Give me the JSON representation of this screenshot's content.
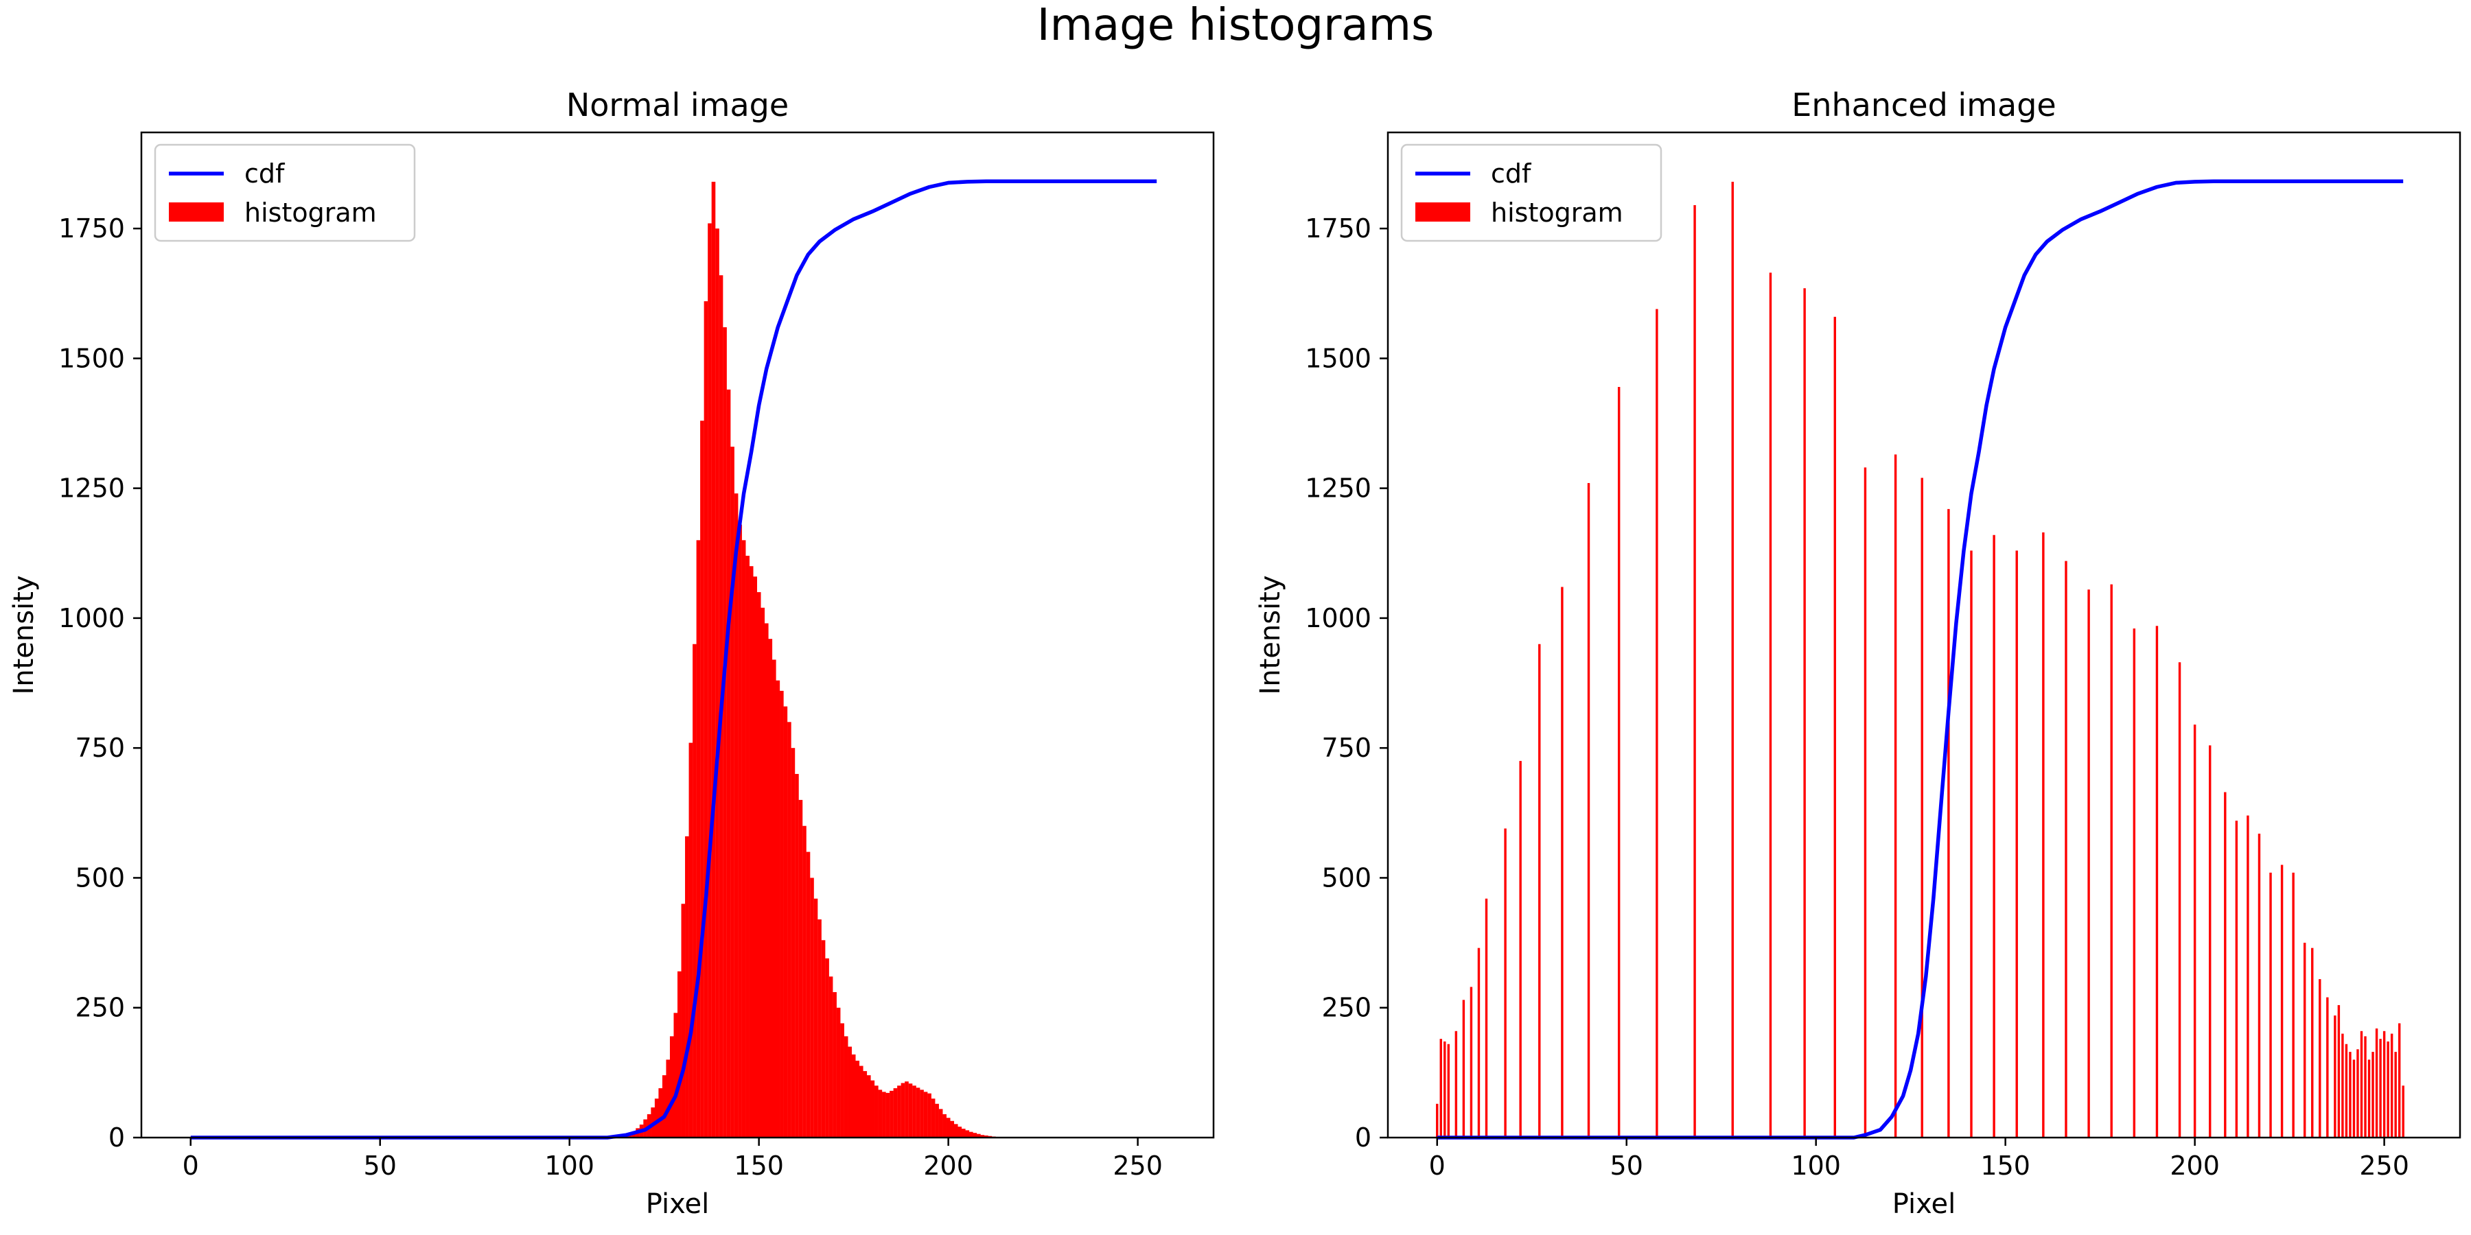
{
  "figure": {
    "title": "Image histograms"
  },
  "colors": {
    "cdf": "#0000ff",
    "histogram": "#ff0000",
    "axis": "#000000"
  },
  "chart_data": [
    {
      "type": "bar",
      "title": "Normal image",
      "xlabel": "Pixel",
      "ylabel": "Intensity",
      "xlim": [
        -13,
        270
      ],
      "ylim": [
        0,
        1935
      ],
      "xticks": [
        0,
        50,
        100,
        150,
        200,
        250
      ],
      "yticks": [
        0,
        250,
        500,
        750,
        1000,
        1250,
        1500,
        1750
      ],
      "legend": {
        "location": "upper-left",
        "entries": [
          "cdf",
          "histogram"
        ]
      },
      "series": [
        {
          "name": "histogram",
          "kind": "bar",
          "histogram_bins": [
            [
              113,
              2
            ],
            [
              114,
              3
            ],
            [
              115,
              5
            ],
            [
              116,
              8
            ],
            [
              117,
              12
            ],
            [
              118,
              18
            ],
            [
              119,
              25
            ],
            [
              120,
              35
            ],
            [
              121,
              45
            ],
            [
              122,
              58
            ],
            [
              123,
              75
            ],
            [
              124,
              95
            ],
            [
              125,
              120
            ],
            [
              126,
              150
            ],
            [
              127,
              195
            ],
            [
              128,
              240
            ],
            [
              129,
              320
            ],
            [
              130,
              450
            ],
            [
              131,
              580
            ],
            [
              132,
              760
            ],
            [
              133,
              950
            ],
            [
              134,
              1150
            ],
            [
              135,
              1380
            ],
            [
              136,
              1610
            ],
            [
              137,
              1760
            ],
            [
              138,
              1840
            ],
            [
              139,
              1750
            ],
            [
              140,
              1660
            ],
            [
              141,
              1560
            ],
            [
              142,
              1440
            ],
            [
              143,
              1330
            ],
            [
              144,
              1240
            ],
            [
              145,
              1180
            ],
            [
              146,
              1150
            ],
            [
              147,
              1120
            ],
            [
              148,
              1100
            ],
            [
              149,
              1080
            ],
            [
              150,
              1050
            ],
            [
              151,
              1020
            ],
            [
              152,
              990
            ],
            [
              153,
              960
            ],
            [
              154,
              920
            ],
            [
              155,
              880
            ],
            [
              156,
              860
            ],
            [
              157,
              830
            ],
            [
              158,
              800
            ],
            [
              159,
              750
            ],
            [
              160,
              700
            ],
            [
              161,
              650
            ],
            [
              162,
              600
            ],
            [
              163,
              550
            ],
            [
              164,
              500
            ],
            [
              165,
              460
            ],
            [
              166,
              420
            ],
            [
              167,
              380
            ],
            [
              168,
              345
            ],
            [
              169,
              310
            ],
            [
              170,
              280
            ],
            [
              171,
              250
            ],
            [
              172,
              220
            ],
            [
              173,
              195
            ],
            [
              174,
              175
            ],
            [
              175,
              160
            ],
            [
              176,
              148
            ],
            [
              177,
              138
            ],
            [
              178,
              128
            ],
            [
              179,
              120
            ],
            [
              180,
              110
            ],
            [
              181,
              100
            ],
            [
              182,
              92
            ],
            [
              183,
              88
            ],
            [
              184,
              86
            ],
            [
              185,
              90
            ],
            [
              186,
              95
            ],
            [
              187,
              100
            ],
            [
              188,
              105
            ],
            [
              189,
              108
            ],
            [
              190,
              104
            ],
            [
              191,
              100
            ],
            [
              192,
              96
            ],
            [
              193,
              92
            ],
            [
              194,
              88
            ],
            [
              195,
              85
            ],
            [
              196,
              75
            ],
            [
              197,
              65
            ],
            [
              198,
              55
            ],
            [
              199,
              45
            ],
            [
              200,
              38
            ],
            [
              201,
              32
            ],
            [
              202,
              26
            ],
            [
              203,
              21
            ],
            [
              204,
              17
            ],
            [
              205,
              14
            ],
            [
              206,
              11
            ],
            [
              207,
              9
            ],
            [
              208,
              7
            ],
            [
              209,
              5
            ],
            [
              210,
              4
            ],
            [
              211,
              3
            ],
            [
              212,
              2
            ],
            [
              213,
              1
            ]
          ]
        },
        {
          "name": "cdf",
          "kind": "line",
          "points": [
            [
              0,
              0
            ],
            [
              110,
              0
            ],
            [
              115,
              5
            ],
            [
              120,
              15
            ],
            [
              125,
              40
            ],
            [
              128,
              80
            ],
            [
              130,
              130
            ],
            [
              132,
              200
            ],
            [
              134,
              310
            ],
            [
              136,
              460
            ],
            [
              138,
              640
            ],
            [
              140,
              820
            ],
            [
              142,
              990
            ],
            [
              144,
              1130
            ],
            [
              146,
              1240
            ],
            [
              148,
              1320
            ],
            [
              150,
              1410
            ],
            [
              152,
              1480
            ],
            [
              155,
              1560
            ],
            [
              158,
              1620
            ],
            [
              160,
              1660
            ],
            [
              163,
              1700
            ],
            [
              166,
              1725
            ],
            [
              170,
              1747
            ],
            [
              175,
              1768
            ],
            [
              180,
              1783
            ],
            [
              185,
              1800
            ],
            [
              190,
              1817
            ],
            [
              195,
              1830
            ],
            [
              200,
              1838
            ],
            [
              205,
              1840
            ],
            [
              210,
              1841
            ],
            [
              255,
              1841
            ]
          ]
        }
      ]
    },
    {
      "type": "bar",
      "title": "Enhanced image",
      "xlabel": "Pixel",
      "ylabel": "Intensity",
      "xlim": [
        -13,
        270
      ],
      "ylim": [
        0,
        1935
      ],
      "xticks": [
        0,
        50,
        100,
        150,
        200,
        250
      ],
      "yticks": [
        0,
        250,
        500,
        750,
        1000,
        1250,
        1500,
        1750
      ],
      "legend": {
        "location": "upper-left",
        "entries": [
          "cdf",
          "histogram"
        ]
      },
      "series": [
        {
          "name": "histogram",
          "kind": "bar",
          "histogram_bins": [
            [
              0,
              65
            ],
            [
              1,
              190
            ],
            [
              2,
              185
            ],
            [
              3,
              180
            ],
            [
              5,
              205
            ],
            [
              7,
              265
            ],
            [
              9,
              290
            ],
            [
              11,
              365
            ],
            [
              13,
              460
            ],
            [
              18,
              595
            ],
            [
              22,
              725
            ],
            [
              27,
              950
            ],
            [
              33,
              1060
            ],
            [
              40,
              1260
            ],
            [
              48,
              1445
            ],
            [
              58,
              1595
            ],
            [
              68,
              1795
            ],
            [
              78,
              1840
            ],
            [
              88,
              1665
            ],
            [
              97,
              1635
            ],
            [
              105,
              1580
            ],
            [
              113,
              1290
            ],
            [
              121,
              1315
            ],
            [
              128,
              1270
            ],
            [
              135,
              1210
            ],
            [
              141,
              1130
            ],
            [
              147,
              1160
            ],
            [
              153,
              1130
            ],
            [
              160,
              1165
            ],
            [
              166,
              1110
            ],
            [
              172,
              1055
            ],
            [
              178,
              1065
            ],
            [
              184,
              980
            ],
            [
              190,
              985
            ],
            [
              196,
              915
            ],
            [
              200,
              795
            ],
            [
              204,
              755
            ],
            [
              208,
              665
            ],
            [
              211,
              610
            ],
            [
              214,
              620
            ],
            [
              217,
              585
            ],
            [
              220,
              510
            ],
            [
              223,
              525
            ],
            [
              226,
              510
            ],
            [
              229,
              375
            ],
            [
              231,
              365
            ],
            [
              233,
              305
            ],
            [
              235,
              270
            ],
            [
              237,
              235
            ],
            [
              238,
              255
            ],
            [
              239,
              200
            ],
            [
              240,
              180
            ],
            [
              241,
              165
            ],
            [
              242,
              150
            ],
            [
              243,
              170
            ],
            [
              244,
              205
            ],
            [
              245,
              195
            ],
            [
              246,
              150
            ],
            [
              247,
              165
            ],
            [
              248,
              210
            ],
            [
              249,
              190
            ],
            [
              250,
              205
            ],
            [
              251,
              185
            ],
            [
              252,
              200
            ],
            [
              253,
              165
            ],
            [
              254,
              220
            ],
            [
              255,
              100
            ]
          ]
        },
        {
          "name": "cdf",
          "kind": "line",
          "points": [
            [
              0,
              0
            ],
            [
              110,
              0
            ],
            [
              113,
              5
            ],
            [
              117,
              15
            ],
            [
              120,
              40
            ],
            [
              123,
              80
            ],
            [
              125,
              130
            ],
            [
              127,
              200
            ],
            [
              129,
              310
            ],
            [
              131,
              460
            ],
            [
              133,
              640
            ],
            [
              135,
              820
            ],
            [
              137,
              990
            ],
            [
              139,
              1130
            ],
            [
              141,
              1240
            ],
            [
              143,
              1320
            ],
            [
              145,
              1410
            ],
            [
              147,
              1480
            ],
            [
              150,
              1560
            ],
            [
              153,
              1620
            ],
            [
              155,
              1660
            ],
            [
              158,
              1700
            ],
            [
              161,
              1725
            ],
            [
              165,
              1747
            ],
            [
              170,
              1768
            ],
            [
              175,
              1783
            ],
            [
              180,
              1800
            ],
            [
              185,
              1817
            ],
            [
              190,
              1830
            ],
            [
              195,
              1838
            ],
            [
              200,
              1840
            ],
            [
              205,
              1841
            ],
            [
              255,
              1841
            ]
          ]
        }
      ]
    }
  ]
}
